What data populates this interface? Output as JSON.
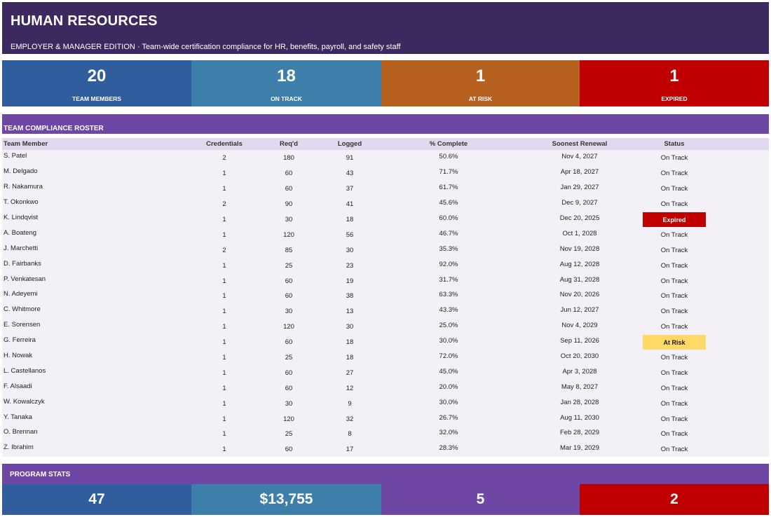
{
  "header": {
    "title": "HUMAN RESOURCES",
    "subtitle": "EMPLOYER & MANAGER EDITION  ·  Team-wide certification compliance for HR, benefits, payroll, and safety staff"
  },
  "kpis": [
    {
      "value": "20",
      "label": "TEAM MEMBERS",
      "color": "#2f5d9e"
    },
    {
      "value": "18",
      "label": "ON TRACK",
      "color": "#3d7eab"
    },
    {
      "value": "1",
      "label": "AT RISK",
      "color": "#b6611f"
    },
    {
      "value": "1",
      "label": "EXPIRED",
      "color": "#c00000"
    }
  ],
  "roster": {
    "title": "TEAM COMPLIANCE ROSTER",
    "columns": [
      "Team Member",
      "Credentials",
      "Req'd",
      "Logged",
      "% Complete",
      "Soonest Renewal",
      "Status"
    ],
    "rows": [
      [
        "S. Patel",
        "2",
        "180",
        "91",
        "50.6%",
        "Nov 4, 2027",
        "On Track"
      ],
      [
        "M. Delgado",
        "1",
        "60",
        "43",
        "71.7%",
        "Apr 18, 2027",
        "On Track"
      ],
      [
        "R. Nakamura",
        "1",
        "60",
        "37",
        "61.7%",
        "Jan 29, 2027",
        "On Track"
      ],
      [
        "T. Okonkwo",
        "2",
        "90",
        "41",
        "45.6%",
        "Dec 9, 2027",
        "On Track"
      ],
      [
        "K. Lindqvist",
        "1",
        "30",
        "18",
        "60.0%",
        "Dec 20, 2025",
        "Expired"
      ],
      [
        "A. Boateng",
        "1",
        "120",
        "56",
        "46.7%",
        "Oct 1, 2028",
        "On Track"
      ],
      [
        "J. Marchetti",
        "2",
        "85",
        "30",
        "35.3%",
        "Nov 19, 2028",
        "On Track"
      ],
      [
        "D. Fairbanks",
        "1",
        "25",
        "23",
        "92.0%",
        "Aug 12, 2028",
        "On Track"
      ],
      [
        "P. Venkatesan",
        "1",
        "60",
        "19",
        "31.7%",
        "Aug 31, 2028",
        "On Track"
      ],
      [
        "N. Adeyemi",
        "1",
        "60",
        "38",
        "63.3%",
        "Nov 20, 2026",
        "On Track"
      ],
      [
        "C. Whitmore",
        "1",
        "30",
        "13",
        "43.3%",
        "Jun 12, 2027",
        "On Track"
      ],
      [
        "E. Sorensen",
        "1",
        "120",
        "30",
        "25.0%",
        "Nov 4, 2029",
        "On Track"
      ],
      [
        "G. Ferreira",
        "1",
        "60",
        "18",
        "30.0%",
        "Sep 11, 2026",
        "At Risk"
      ],
      [
        "H. Nowak",
        "1",
        "25",
        "18",
        "72.0%",
        "Oct 20, 2030",
        "On Track"
      ],
      [
        "L. Castellanos",
        "1",
        "60",
        "27",
        "45.0%",
        "Apr 3, 2028",
        "On Track"
      ],
      [
        "F. Alsaadi",
        "1",
        "60",
        "12",
        "20.0%",
        "May 8, 2027",
        "On Track"
      ],
      [
        "W. Kowalczyk",
        "1",
        "30",
        "9",
        "30.0%",
        "Jan 28, 2028",
        "On Track"
      ],
      [
        "Y. Tanaka",
        "1",
        "120",
        "32",
        "26.7%",
        "Aug 11, 2030",
        "On Track"
      ],
      [
        "O. Brennan",
        "1",
        "25",
        "8",
        "32.0%",
        "Feb 28, 2029",
        "On Track"
      ],
      [
        "Z. Ibrahim",
        "1",
        "60",
        "17",
        "28.3%",
        "Mar 19, 2029",
        "On Track"
      ]
    ],
    "status_colors": {
      "Expired": {
        "bg": "#c00000",
        "fg": "#ffffff"
      },
      "At Risk": {
        "bg": "#ffd966",
        "fg": "#1a1a1a"
      }
    }
  },
  "program_stats": {
    "title": "PROGRAM STATS",
    "values": [
      {
        "value": "47",
        "color": "#2f5d9e"
      },
      {
        "value": "$13,755",
        "color": "#3d7eab"
      },
      {
        "value": "5",
        "color": "#6e47a5"
      },
      {
        "value": "2",
        "color": "#c00000"
      }
    ]
  }
}
